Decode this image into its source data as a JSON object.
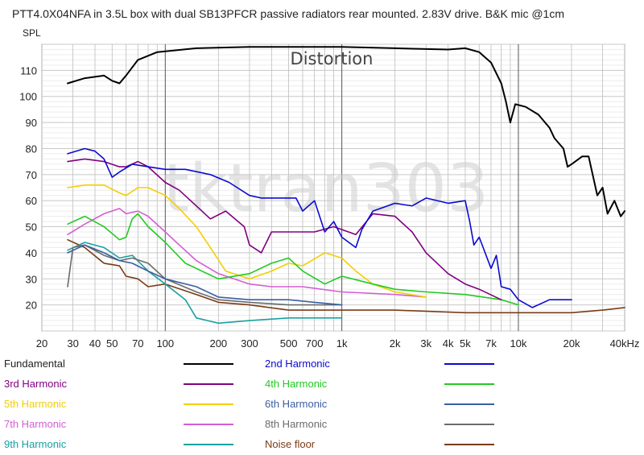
{
  "chart_data": {
    "type": "line",
    "title": "PTT4.0X04NFA in 3.5L box with dual SB13PFCR passive radiators rear mounted. 2.83V drive. B&K mic @1cm",
    "ylabel": "SPL",
    "xlabel": "",
    "x_scale": "log",
    "xlim": [
      20,
      40000
    ],
    "ylim": [
      10,
      120
    ],
    "grid": true,
    "legend_placement": "bottom",
    "watermark": "tktran303",
    "annotation": "Distortion",
    "y_ticks": [
      20,
      30,
      40,
      50,
      60,
      70,
      80,
      90,
      100,
      110
    ],
    "x_ticks": [
      {
        "value": 20,
        "label": "20"
      },
      {
        "value": 30,
        "label": "30"
      },
      {
        "value": 40,
        "label": "40"
      },
      {
        "value": 50,
        "label": "50"
      },
      {
        "value": 70,
        "label": "70"
      },
      {
        "value": 100,
        "label": "100"
      },
      {
        "value": 200,
        "label": "200"
      },
      {
        "value": 300,
        "label": "300"
      },
      {
        "value": 500,
        "label": "500"
      },
      {
        "value": 700,
        "label": "700"
      },
      {
        "value": 1000,
        "label": "1k"
      },
      {
        "value": 2000,
        "label": "2k"
      },
      {
        "value": 3000,
        "label": "3k"
      },
      {
        "value": 4000,
        "label": "4k"
      },
      {
        "value": 5000,
        "label": "5k"
      },
      {
        "value": 7000,
        "label": "7k"
      },
      {
        "value": 10000,
        "label": "10k"
      },
      {
        "value": 20000,
        "label": "20k"
      },
      {
        "value": 40000,
        "label": "40kHz"
      }
    ],
    "series": [
      {
        "name": "Fundamental",
        "color": "#000000",
        "points": [
          [
            28,
            105
          ],
          [
            35,
            107
          ],
          [
            45,
            108
          ],
          [
            50,
            106
          ],
          [
            55,
            105
          ],
          [
            60,
            108
          ],
          [
            70,
            114
          ],
          [
            90,
            117
          ],
          [
            150,
            118.5
          ],
          [
            300,
            119
          ],
          [
            1000,
            119
          ],
          [
            2000,
            118.5
          ],
          [
            4000,
            118
          ],
          [
            5000,
            118.5
          ],
          [
            6000,
            117
          ],
          [
            7000,
            113
          ],
          [
            8000,
            105
          ],
          [
            8500,
            98
          ],
          [
            9000,
            90
          ],
          [
            9600,
            97
          ],
          [
            11000,
            96
          ],
          [
            13000,
            93
          ],
          [
            15000,
            88
          ],
          [
            16000,
            84
          ],
          [
            18000,
            80
          ],
          [
            19000,
            73
          ],
          [
            20000,
            74
          ],
          [
            23000,
            77
          ],
          [
            25000,
            77
          ],
          [
            28000,
            62
          ],
          [
            30000,
            65
          ],
          [
            32000,
            55
          ],
          [
            35000,
            60
          ],
          [
            38000,
            54
          ],
          [
            40000,
            56
          ]
        ]
      },
      {
        "name": "2nd Harmonic",
        "color": "#0a0ad0",
        "points": [
          [
            28,
            78
          ],
          [
            35,
            80
          ],
          [
            40,
            79
          ],
          [
            45,
            76
          ],
          [
            50,
            69
          ],
          [
            55,
            71
          ],
          [
            65,
            74
          ],
          [
            80,
            73
          ],
          [
            100,
            72
          ],
          [
            130,
            72
          ],
          [
            180,
            70
          ],
          [
            230,
            67
          ],
          [
            300,
            62
          ],
          [
            350,
            61
          ],
          [
            450,
            61
          ],
          [
            550,
            61
          ],
          [
            600,
            56
          ],
          [
            700,
            60
          ],
          [
            800,
            48
          ],
          [
            900,
            52
          ],
          [
            1000,
            46
          ],
          [
            1200,
            42
          ],
          [
            1300,
            49
          ],
          [
            1500,
            56
          ],
          [
            2000,
            59
          ],
          [
            2500,
            58
          ],
          [
            3000,
            61
          ],
          [
            4000,
            59
          ],
          [
            5000,
            60
          ],
          [
            5300,
            52
          ],
          [
            5600,
            43
          ],
          [
            6000,
            46
          ],
          [
            7000,
            34
          ],
          [
            7500,
            39
          ],
          [
            8000,
            27
          ],
          [
            9000,
            26
          ],
          [
            10000,
            22
          ],
          [
            12000,
            19
          ],
          [
            15000,
            22
          ],
          [
            17000,
            22
          ],
          [
            20000,
            22
          ]
        ]
      },
      {
        "name": "3rd Harmonic",
        "color": "#800080",
        "points": [
          [
            28,
            75
          ],
          [
            35,
            76
          ],
          [
            45,
            75
          ],
          [
            55,
            73
          ],
          [
            60,
            73
          ],
          [
            70,
            75
          ],
          [
            80,
            73
          ],
          [
            100,
            67
          ],
          [
            120,
            64
          ],
          [
            150,
            58
          ],
          [
            180,
            53
          ],
          [
            220,
            56
          ],
          [
            280,
            50
          ],
          [
            300,
            43
          ],
          [
            350,
            40
          ],
          [
            400,
            48
          ],
          [
            500,
            48
          ],
          [
            700,
            48
          ],
          [
            900,
            50
          ],
          [
            1200,
            47
          ],
          [
            1500,
            55
          ],
          [
            2000,
            54
          ],
          [
            2500,
            48
          ],
          [
            3000,
            40
          ],
          [
            4000,
            32
          ],
          [
            5000,
            28
          ],
          [
            6000,
            26
          ],
          [
            8000,
            22
          ]
        ]
      },
      {
        "name": "4th Harmonic",
        "color": "#22c922",
        "points": [
          [
            28,
            51
          ],
          [
            35,
            54
          ],
          [
            45,
            50
          ],
          [
            55,
            45
          ],
          [
            60,
            46
          ],
          [
            65,
            53
          ],
          [
            70,
            55
          ],
          [
            80,
            50
          ],
          [
            100,
            44
          ],
          [
            130,
            36
          ],
          [
            200,
            30
          ],
          [
            300,
            32
          ],
          [
            400,
            36
          ],
          [
            500,
            38
          ],
          [
            600,
            33
          ],
          [
            800,
            28
          ],
          [
            1000,
            31
          ],
          [
            1500,
            28
          ],
          [
            2000,
            26
          ],
          [
            3000,
            25
          ],
          [
            5000,
            24
          ],
          [
            8000,
            22
          ],
          [
            10000,
            20
          ]
        ]
      },
      {
        "name": "5th Harmonic",
        "color": "#f2cf00",
        "points": [
          [
            28,
            65
          ],
          [
            35,
            66
          ],
          [
            45,
            66
          ],
          [
            55,
            63
          ],
          [
            60,
            62
          ],
          [
            70,
            65
          ],
          [
            80,
            65
          ],
          [
            100,
            62
          ],
          [
            120,
            57
          ],
          [
            150,
            50
          ],
          [
            180,
            42
          ],
          [
            220,
            33
          ],
          [
            300,
            30
          ],
          [
            400,
            33
          ],
          [
            500,
            36
          ],
          [
            600,
            35
          ],
          [
            800,
            40
          ],
          [
            1000,
            38
          ],
          [
            1200,
            33
          ],
          [
            1500,
            28
          ],
          [
            2000,
            25
          ],
          [
            3000,
            23
          ]
        ]
      },
      {
        "name": "6th Harmonic",
        "color": "#3a5fa0",
        "points": [
          [
            28,
            40
          ],
          [
            35,
            43
          ],
          [
            45,
            40
          ],
          [
            55,
            37
          ],
          [
            65,
            36
          ],
          [
            80,
            33
          ],
          [
            100,
            30
          ],
          [
            150,
            27
          ],
          [
            200,
            23
          ],
          [
            300,
            22
          ],
          [
            500,
            22
          ],
          [
            700,
            21
          ],
          [
            1000,
            20
          ]
        ]
      },
      {
        "name": "7th Harmonic",
        "color": "#d35ed3",
        "points": [
          [
            28,
            47
          ],
          [
            35,
            51
          ],
          [
            45,
            55
          ],
          [
            55,
            57
          ],
          [
            60,
            55
          ],
          [
            70,
            56
          ],
          [
            80,
            54
          ],
          [
            100,
            48
          ],
          [
            120,
            43
          ],
          [
            150,
            37
          ],
          [
            200,
            32
          ],
          [
            300,
            28
          ],
          [
            400,
            27
          ],
          [
            600,
            27
          ],
          [
            1000,
            25
          ],
          [
            2000,
            24
          ],
          [
            3000,
            23
          ]
        ]
      },
      {
        "name": "8th Harmonic",
        "color": "#6b6b6b",
        "points": [
          [
            28,
            27
          ],
          [
            30,
            42
          ],
          [
            35,
            43
          ],
          [
            45,
            39
          ],
          [
            55,
            37
          ],
          [
            65,
            38
          ],
          [
            80,
            36
          ],
          [
            100,
            30
          ],
          [
            150,
            25
          ],
          [
            200,
            22
          ],
          [
            300,
            21
          ],
          [
            500,
            20
          ],
          [
            1000,
            20
          ]
        ]
      },
      {
        "name": "9th Harmonic",
        "color": "#1aa0a0",
        "points": [
          [
            28,
            41
          ],
          [
            35,
            44
          ],
          [
            45,
            42
          ],
          [
            55,
            38
          ],
          [
            65,
            39
          ],
          [
            80,
            33
          ],
          [
            100,
            28
          ],
          [
            130,
            22
          ],
          [
            150,
            15
          ],
          [
            200,
            13
          ],
          [
            300,
            14
          ],
          [
            500,
            15
          ],
          [
            800,
            15
          ],
          [
            1000,
            15
          ]
        ]
      },
      {
        "name": "Noise floor",
        "color": "#7a3b16",
        "points": [
          [
            28,
            45
          ],
          [
            35,
            42
          ],
          [
            45,
            36
          ],
          [
            55,
            35
          ],
          [
            60,
            31
          ],
          [
            70,
            30
          ],
          [
            80,
            27
          ],
          [
            100,
            28
          ],
          [
            150,
            24
          ],
          [
            200,
            21
          ],
          [
            300,
            20
          ],
          [
            500,
            18
          ],
          [
            1000,
            18
          ],
          [
            2000,
            18
          ],
          [
            5000,
            17
          ],
          [
            10000,
            17
          ],
          [
            20000,
            17
          ],
          [
            30000,
            18
          ],
          [
            40000,
            19
          ]
        ]
      }
    ]
  }
}
